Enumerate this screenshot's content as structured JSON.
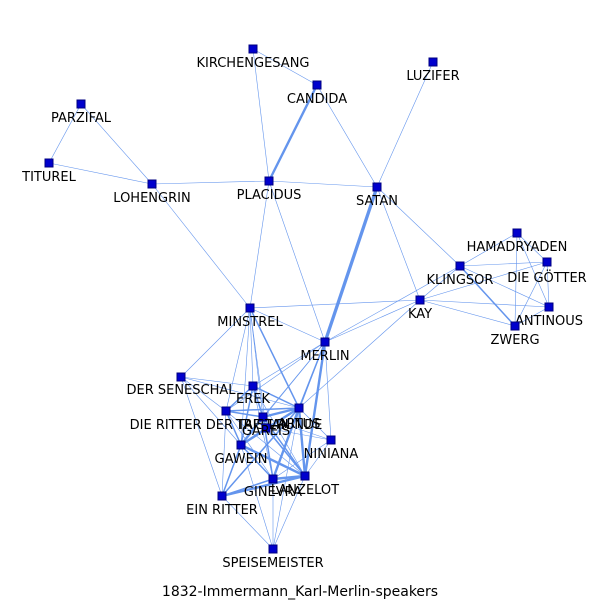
{
  "caption": "1832-Immermann_Karl-Merlin-speakers",
  "colors": {
    "edge": "#6495ed",
    "node_fill": "#0000cd",
    "node_stroke": "#000080"
  },
  "nodes": [
    {
      "id": "kirchengesang",
      "label": "KIRCHENGESANG"
    },
    {
      "id": "candida",
      "label": "CANDIDA"
    },
    {
      "id": "luzifer",
      "label": "LUZIFER"
    },
    {
      "id": "parzifal",
      "label": "PARZIFAL"
    },
    {
      "id": "titurel",
      "label": "TITUREL"
    },
    {
      "id": "lohengrin",
      "label": "LOHENGRIN"
    },
    {
      "id": "placidus",
      "label": "PLACIDUS"
    },
    {
      "id": "satan",
      "label": "SATAN"
    },
    {
      "id": "hamadryaden",
      "label": "HAMADRYADEN"
    },
    {
      "id": "klingsor",
      "label": "KLINGSOR"
    },
    {
      "id": "die_goetter",
      "label": "DIE GÖTTER"
    },
    {
      "id": "kay",
      "label": "KAY"
    },
    {
      "id": "antinous",
      "label": "ANTINOUS"
    },
    {
      "id": "zwerg",
      "label": "ZWERG"
    },
    {
      "id": "minstrel",
      "label": "MINSTREL"
    },
    {
      "id": "merlin",
      "label": "MERLIN"
    },
    {
      "id": "der_seneschal",
      "label": "DER SENESCHAL"
    },
    {
      "id": "erek",
      "label": "EREK"
    },
    {
      "id": "die_ritter",
      "label": "DIE RITTER DER TAFELRUNDE"
    },
    {
      "id": "artus",
      "label": "ARTUS"
    },
    {
      "id": "tristan",
      "label": "TRISTAN"
    },
    {
      "id": "gareis",
      "label": "GAREIS"
    },
    {
      "id": "niniana",
      "label": "NINIANA"
    },
    {
      "id": "gawein",
      "label": "GAWEIN"
    },
    {
      "id": "ginevra",
      "label": "GINEVRA"
    },
    {
      "id": "lanzelot",
      "label": "LANZELOT"
    },
    {
      "id": "ein_ritter",
      "label": "EIN RITTER"
    },
    {
      "id": "speisemeister",
      "label": "SPEISEMEISTER"
    }
  ],
  "edges": [
    [
      "kirchengesang",
      "candida",
      1
    ],
    [
      "kirchengesang",
      "placidus",
      1
    ],
    [
      "candida",
      "placidus",
      3
    ],
    [
      "candida",
      "satan",
      1
    ],
    [
      "luzifer",
      "satan",
      1
    ],
    [
      "parzifal",
      "titurel",
      1
    ],
    [
      "parzifal",
      "lohengrin",
      1
    ],
    [
      "titurel",
      "lohengrin",
      1
    ],
    [
      "lohengrin",
      "placidus",
      1
    ],
    [
      "lohengrin",
      "minstrel",
      1
    ],
    [
      "placidus",
      "satan",
      1
    ],
    [
      "placidus",
      "minstrel",
      1
    ],
    [
      "placidus",
      "merlin",
      1
    ],
    [
      "satan",
      "merlin",
      4
    ],
    [
      "satan",
      "klingsor",
      1
    ],
    [
      "satan",
      "kay",
      1
    ],
    [
      "hamadryaden",
      "klingsor",
      1
    ],
    [
      "hamadryaden",
      "die_goetter",
      1
    ],
    [
      "hamadryaden",
      "zwerg",
      1
    ],
    [
      "hamadryaden",
      "antinous",
      1
    ],
    [
      "klingsor",
      "die_goetter",
      1
    ],
    [
      "klingsor",
      "kay",
      1
    ],
    [
      "klingsor",
      "zwerg",
      2
    ],
    [
      "klingsor",
      "antinous",
      1
    ],
    [
      "die_goetter",
      "zwerg",
      1
    ],
    [
      "die_goetter",
      "antinous",
      1
    ],
    [
      "die_goetter",
      "kay",
      1
    ],
    [
      "kay",
      "zwerg",
      1
    ],
    [
      "kay",
      "antinous",
      1
    ],
    [
      "antinous",
      "zwerg",
      1
    ],
    [
      "minstrel",
      "kay",
      1
    ],
    [
      "merlin",
      "kay",
      1
    ],
    [
      "merlin",
      "klingsor",
      1
    ],
    [
      "merlin",
      "niniana",
      1
    ],
    [
      "minstrel",
      "merlin",
      1
    ],
    [
      "minstrel",
      "erek",
      1
    ],
    [
      "minstrel",
      "die_ritter",
      1
    ],
    [
      "minstrel",
      "artus",
      2
    ],
    [
      "minstrel",
      "gareis",
      1
    ],
    [
      "minstrel",
      "tristan",
      1
    ],
    [
      "minstrel",
      "der_seneschal",
      1
    ],
    [
      "minstrel",
      "gawein",
      1
    ],
    [
      "merlin",
      "artus",
      2
    ],
    [
      "merlin",
      "lanzelot",
      3
    ],
    [
      "merlin",
      "ginevra",
      1
    ],
    [
      "merlin",
      "gawein",
      1
    ],
    [
      "merlin",
      "die_ritter",
      1
    ],
    [
      "merlin",
      "tristan",
      1
    ],
    [
      "merlin",
      "erek",
      1
    ],
    [
      "kay",
      "artus",
      1
    ],
    [
      "der_seneschal",
      "erek",
      1
    ],
    [
      "der_seneschal",
      "die_ritter",
      1
    ],
    [
      "der_seneschal",
      "artus",
      1
    ],
    [
      "der_seneschal",
      "gawein",
      1
    ],
    [
      "der_seneschal",
      "ein_ritter",
      1
    ],
    [
      "erek",
      "die_ritter",
      2
    ],
    [
      "erek",
      "artus",
      2
    ],
    [
      "erek",
      "gawein",
      2
    ],
    [
      "erek",
      "tristan",
      2
    ],
    [
      "erek",
      "gareis",
      1
    ],
    [
      "erek",
      "lanzelot",
      1
    ],
    [
      "erek",
      "ginevra",
      1
    ],
    [
      "die_ritter",
      "artus",
      2
    ],
    [
      "die_ritter",
      "gawein",
      2
    ],
    [
      "die_ritter",
      "tristan",
      2
    ],
    [
      "die_ritter",
      "ein_ritter",
      1
    ],
    [
      "die_ritter",
      "lanzelot",
      1
    ],
    [
      "die_ritter",
      "ginevra",
      1
    ],
    [
      "artus",
      "tristan",
      3
    ],
    [
      "artus",
      "gareis",
      2
    ],
    [
      "artus",
      "gawein",
      3
    ],
    [
      "artus",
      "lanzelot",
      3
    ],
    [
      "artus",
      "ginevra",
      3
    ],
    [
      "artus",
      "niniana",
      1
    ],
    [
      "artus",
      "ein_ritter",
      2
    ],
    [
      "artus",
      "speisemeister",
      1
    ],
    [
      "tristan",
      "gareis",
      2
    ],
    [
      "tristan",
      "gawein",
      3
    ],
    [
      "tristan",
      "lanzelot",
      2
    ],
    [
      "tristan",
      "ginevra",
      2
    ],
    [
      "tristan",
      "niniana",
      1
    ],
    [
      "gareis",
      "gawein",
      2
    ],
    [
      "gareis",
      "lanzelot",
      2
    ],
    [
      "gareis",
      "niniana",
      1
    ],
    [
      "gawein",
      "lanzelot",
      3
    ],
    [
      "gawein",
      "ginevra",
      2
    ],
    [
      "gawein",
      "ein_ritter",
      2
    ],
    [
      "gawein",
      "speisemeister",
      1
    ],
    [
      "lanzelot",
      "ginevra",
      3
    ],
    [
      "lanzelot",
      "ein_ritter",
      3
    ],
    [
      "lanzelot",
      "speisemeister",
      1
    ],
    [
      "lanzelot",
      "niniana",
      1
    ],
    [
      "ginevra",
      "ein_ritter",
      2
    ],
    [
      "ginevra",
      "speisemeister",
      1
    ],
    [
      "ein_ritter",
      "speisemeister",
      1
    ],
    [
      "niniana",
      "ginevra",
      1
    ]
  ]
}
